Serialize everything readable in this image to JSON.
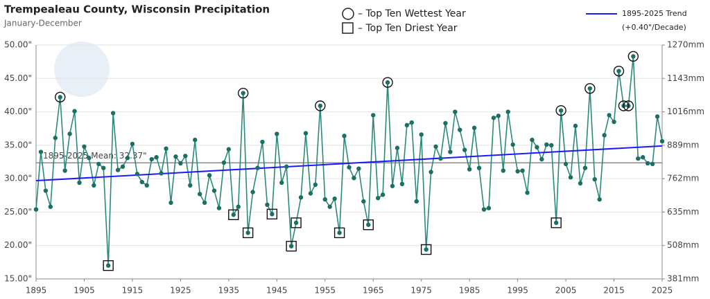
{
  "chart_data": {
    "type": "line",
    "title": "Trempealeau County, Wisconsin Precipitation",
    "subtitle": "January-December",
    "wettest_label": "– Top Ten Wettest Year",
    "driest_label": "– Top Ten Driest Year",
    "trend_note": "(+0.40\"/Decade)",
    "xlim": [
      1895,
      2025
    ],
    "xticks": [
      1895,
      1905,
      1915,
      1925,
      1935,
      1945,
      1955,
      1965,
      1975,
      1985,
      1995,
      2005,
      2015,
      2025
    ],
    "ylim": [
      15,
      50
    ],
    "yticks": [
      {
        "value": 15,
        "label": "15.00\""
      },
      {
        "value": 20,
        "label": "20.00\""
      },
      {
        "value": 25,
        "label": "25.00\""
      },
      {
        "value": 30,
        "label": "30.00\""
      },
      {
        "value": 35,
        "label": "35.00\""
      },
      {
        "value": 40,
        "label": "40.00\""
      },
      {
        "value": 45,
        "label": "45.00\""
      },
      {
        "value": 50,
        "label": "50.00\""
      }
    ],
    "y2lim": [
      381,
      1270
    ],
    "y2ticks": [
      {
        "value": 381,
        "label": "381mm"
      },
      {
        "value": 508,
        "label": "508mm"
      },
      {
        "value": 635,
        "label": "635mm"
      },
      {
        "value": 762,
        "label": "762mm"
      },
      {
        "value": 889,
        "label": "889mm"
      },
      {
        "value": 1016,
        "label": "1016mm"
      },
      {
        "value": 1143,
        "label": "1143mm"
      },
      {
        "value": 1270,
        "label": "1270mm"
      }
    ],
    "grid": true,
    "mean": {
      "value": 32.37,
      "label": "1895-2025 Mean: 32.37\"",
      "color": "#888888"
    },
    "wettest_years": [
      1900,
      1938,
      1954,
      1968,
      2004,
      2010,
      2016,
      2017,
      2018,
      2019
    ],
    "driest_years": [
      1910,
      1936,
      1939,
      1944,
      1948,
      1949,
      1958,
      1964,
      1976,
      2003
    ],
    "x": [
      1895,
      1896,
      1897,
      1898,
      1899,
      1900,
      1901,
      1902,
      1903,
      1904,
      1905,
      1906,
      1907,
      1908,
      1909,
      1910,
      1911,
      1912,
      1913,
      1914,
      1915,
      1916,
      1917,
      1918,
      1919,
      1920,
      1921,
      1922,
      1923,
      1924,
      1925,
      1926,
      1927,
      1928,
      1929,
      1930,
      1931,
      1932,
      1933,
      1934,
      1935,
      1936,
      1937,
      1938,
      1939,
      1940,
      1941,
      1942,
      1943,
      1944,
      1945,
      1946,
      1947,
      1948,
      1949,
      1950,
      1951,
      1952,
      1953,
      1954,
      1955,
      1956,
      1957,
      1958,
      1959,
      1960,
      1961,
      1962,
      1963,
      1964,
      1965,
      1966,
      1967,
      1968,
      1969,
      1970,
      1971,
      1972,
      1973,
      1974,
      1975,
      1976,
      1977,
      1978,
      1979,
      1980,
      1981,
      1982,
      1983,
      1984,
      1985,
      1986,
      1987,
      1988,
      1989,
      1990,
      1991,
      1992,
      1993,
      1994,
      1995,
      1996,
      1997,
      1998,
      1999,
      2000,
      2001,
      2002,
      2003,
      2004,
      2005,
      2006,
      2007,
      2008,
      2009,
      2010,
      2011,
      2012,
      2013,
      2014,
      2015,
      2016,
      2017,
      2018,
      2019,
      2020,
      2021,
      2022,
      2023,
      2024,
      2025
    ],
    "series": [
      {
        "name": "Precipitation",
        "color": "#2a8a7a",
        "marker_color": "#1b6f63",
        "values": [
          25.4,
          34.0,
          28.2,
          25.8,
          36.1,
          42.2,
          31.2,
          36.7,
          40.1,
          29.4,
          34.8,
          33.1,
          29.0,
          32.2,
          31.6,
          17.0,
          39.8,
          31.3,
          31.8,
          33.1,
          35.2,
          30.7,
          29.5,
          29.0,
          32.9,
          33.2,
          30.8,
          34.5,
          26.4,
          33.3,
          32.3,
          33.4,
          29.0,
          35.8,
          27.7,
          26.4,
          30.5,
          28.2,
          25.6,
          32.4,
          34.4,
          24.6,
          25.8,
          42.8,
          21.9,
          28.0,
          31.6,
          35.5,
          26.1,
          24.7,
          36.7,
          29.4,
          31.8,
          19.9,
          23.4,
          27.2,
          36.8,
          27.8,
          29.1,
          40.9,
          26.9,
          25.8,
          27.0,
          21.9,
          36.4,
          31.7,
          30.1,
          31.5,
          26.6,
          23.1,
          39.5,
          27.1,
          27.6,
          44.4,
          28.9,
          34.6,
          29.2,
          38.0,
          38.4,
          26.6,
          36.6,
          19.4,
          31.0,
          34.8,
          33.0,
          38.3,
          34.0,
          40.0,
          37.3,
          34.3,
          31.4,
          37.6,
          31.6,
          25.4,
          25.6,
          39.1,
          39.4,
          31.2,
          40.0,
          35.1,
          31.1,
          31.2,
          27.9,
          35.8,
          34.7,
          32.9,
          35.1,
          35.0,
          23.4,
          40.2,
          32.2,
          30.2,
          37.9,
          29.3,
          31.6,
          43.5,
          29.9,
          26.9,
          36.5,
          39.5,
          38.5,
          46.1,
          40.9,
          40.9,
          48.3,
          33.0,
          33.2,
          32.3,
          32.2,
          39.3,
          35.6
        ]
      },
      {
        "name": "1895-2025 Trend",
        "color": "#1a1aff",
        "x": [
          1895,
          2025
        ],
        "values": [
          29.7,
          34.9
        ]
      }
    ]
  }
}
